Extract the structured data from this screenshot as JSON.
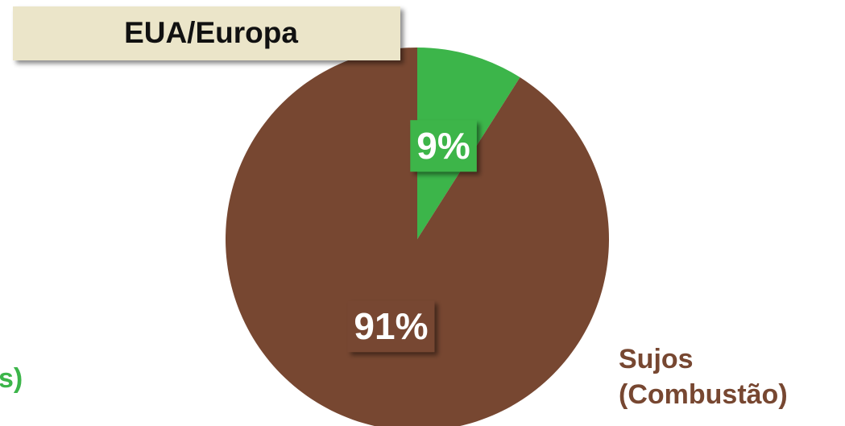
{
  "chart_data": {
    "type": "pie",
    "title": "EUA/Europa",
    "categories": [
      "s)",
      "Sujos (Combustão)"
    ],
    "values": [
      9,
      91
    ],
    "value_labels": [
      "9%",
      "91%"
    ],
    "colors": [
      "#3cb54a",
      "#774731"
    ]
  }
}
